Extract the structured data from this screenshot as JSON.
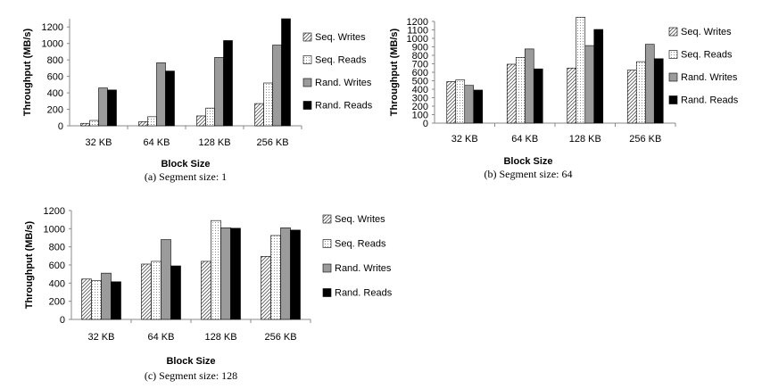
{
  "chart_data": [
    {
      "id": "a",
      "type": "bar",
      "caption": "(a)  Segment size: 1",
      "xlabel": "Block Size",
      "ylabel": "Throughput (MB/s)",
      "ylim": [
        0,
        1300
      ],
      "yticks": [
        0,
        200,
        400,
        600,
        800,
        1000,
        1200
      ],
      "categories": [
        "32 KB",
        "64 KB",
        "128 KB",
        "256 KB"
      ],
      "legend_position": "right",
      "series": [
        {
          "name": "Seq. Writes",
          "pattern": "diag",
          "values": [
            30,
            50,
            120,
            270
          ]
        },
        {
          "name": "Seq. Reads",
          "pattern": "dots",
          "values": [
            65,
            110,
            215,
            520
          ]
        },
        {
          "name": "Rand. Writes",
          "pattern": "gray",
          "values": [
            460,
            765,
            830,
            980
          ]
        },
        {
          "name": "Rand. Reads",
          "pattern": "black",
          "values": [
            435,
            665,
            1035,
            1300
          ]
        }
      ]
    },
    {
      "id": "b",
      "type": "bar",
      "caption": "(b)  Segment size: 64",
      "xlabel": "Block Size",
      "ylabel": "Throughput (MB/s)",
      "ylim": [
        0,
        1200
      ],
      "yticks": [
        0,
        100,
        200,
        300,
        400,
        500,
        600,
        700,
        800,
        900,
        1000,
        1100,
        1200
      ],
      "categories": [
        "32 KB",
        "64 KB",
        "128 KB",
        "256 KB"
      ],
      "legend_position": "right",
      "series": [
        {
          "name": "Seq. Writes",
          "pattern": "diag",
          "values": [
            490,
            695,
            650,
            625
          ]
        },
        {
          "name": "Seq. Reads",
          "pattern": "dots",
          "values": [
            510,
            775,
            1250,
            725
          ]
        },
        {
          "name": "Rand. Writes",
          "pattern": "gray",
          "values": [
            445,
            875,
            915,
            930
          ]
        },
        {
          "name": "Rand. Reads",
          "pattern": "black",
          "values": [
            390,
            640,
            1105,
            760
          ]
        }
      ]
    },
    {
      "id": "c",
      "type": "bar",
      "caption": "(c)  Segment size: 128",
      "xlabel": "Block Size",
      "ylabel": "Throughput (MB/s)",
      "ylim": [
        0,
        1200
      ],
      "yticks": [
        0,
        200,
        400,
        600,
        800,
        1000,
        1200
      ],
      "categories": [
        "32 KB",
        "64 KB",
        "128 KB",
        "256 KB"
      ],
      "legend_position": "right",
      "series": [
        {
          "name": "Seq. Writes",
          "pattern": "diag",
          "values": [
            445,
            610,
            640,
            695
          ]
        },
        {
          "name": "Seq. Reads",
          "pattern": "dots",
          "values": [
            430,
            640,
            1090,
            925
          ]
        },
        {
          "name": "Rand. Writes",
          "pattern": "gray",
          "values": [
            510,
            880,
            1010,
            1010
          ]
        },
        {
          "name": "Rand. Reads",
          "pattern": "black",
          "values": [
            415,
            590,
            1005,
            985
          ]
        }
      ]
    }
  ]
}
